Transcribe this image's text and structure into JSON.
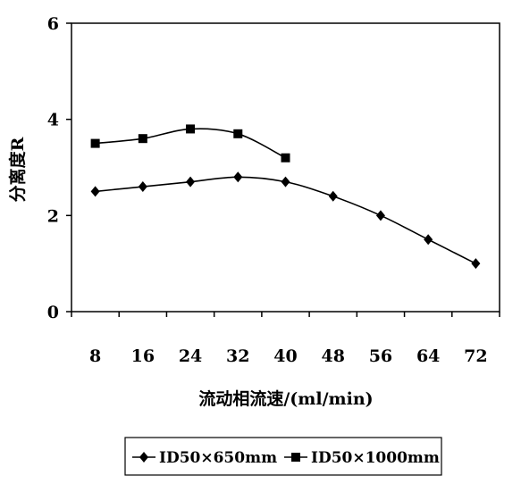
{
  "chart_data": {
    "type": "line",
    "title": "",
    "xlabel": "流动相流速/(ml/min)",
    "ylabel": "分离度R",
    "x": [
      8,
      16,
      24,
      32,
      40,
      48,
      56,
      64,
      72
    ],
    "x_tick_labels": [
      "8",
      "16",
      "24",
      "32",
      "40",
      "48",
      "56",
      "64",
      "72"
    ],
    "y_tick_labels": [
      "0",
      "2",
      "4",
      "6"
    ],
    "ylim": [
      0,
      6
    ],
    "grid": false,
    "legend_position": "bottom",
    "series": [
      {
        "name": "ID50×650mm",
        "marker": "diamond",
        "color": "#000000",
        "x": [
          8,
          16,
          24,
          32,
          40,
          48,
          56,
          64,
          72
        ],
        "values": [
          2.5,
          2.6,
          2.7,
          2.8,
          2.7,
          2.4,
          2.0,
          1.5,
          1.0
        ]
      },
      {
        "name": "ID50×1000mm",
        "marker": "square",
        "color": "#000000",
        "x": [
          8,
          16,
          24,
          32,
          40
        ],
        "values": [
          3.5,
          3.6,
          3.8,
          3.7,
          3.2
        ]
      }
    ]
  }
}
